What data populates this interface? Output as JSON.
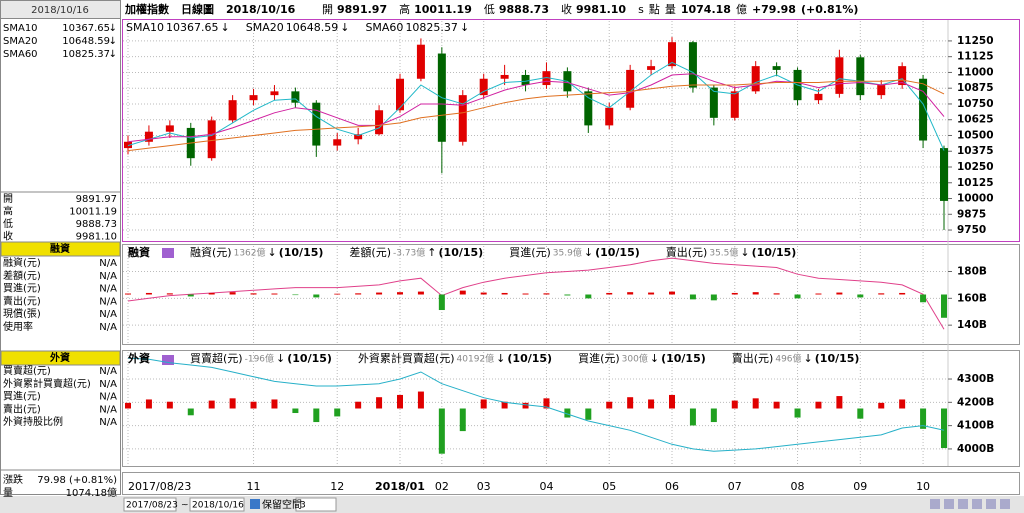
{
  "header": {
    "title": "加權指數",
    "period": "日線圖",
    "date": "2018/10/16",
    "ohlc": [
      {
        "label": "開",
        "value": "9891.97",
        "color": "#008000"
      },
      {
        "label": "高",
        "value": "10011.19",
        "color": "#e00000"
      },
      {
        "label": "低",
        "value": "9888.73",
        "color": "#008000"
      },
      {
        "label": "收",
        "value": "9981.10",
        "color": "#e00000"
      }
    ],
    "unit_s": "s",
    "unit": "點",
    "volume_label": "量",
    "volume": "1074.18",
    "volume_unit": "億",
    "change": "+79.98",
    "change_pct": "(+0.81%)"
  },
  "sidebar": {
    "margin_title": "融資",
    "margin_rows": [
      {
        "label": "融資(元)",
        "value": "N/A",
        "color": "#e0408a"
      },
      {
        "label": "差額(元)",
        "value": "N/A",
        "color": "#26a0c8"
      },
      {
        "label": "買進(元)",
        "value": "N/A",
        "color": "#f08a30"
      },
      {
        "label": "賣出(元)",
        "value": "N/A",
        "color": "#2060c0"
      },
      {
        "label": "現償(張)",
        "value": "N/A",
        "color": "#20a020"
      },
      {
        "label": "使用率",
        "value": "N/A",
        "color": "#8040c0"
      }
    ],
    "foreign_title": "外資",
    "foreign_rows": [
      {
        "label": "買賣超(元)",
        "value": "N/A",
        "color": "#e0408a"
      },
      {
        "label": "外資累計買賣超(元)",
        "value": "N/A",
        "color": "#26a0c8"
      },
      {
        "label": "買進(元)",
        "value": "N/A",
        "color": "#f08a30"
      },
      {
        "label": "賣出(元)",
        "value": "N/A",
        "color": "#2060c0"
      },
      {
        "label": "外資持股比例",
        "value": "N/A",
        "color": "#20a020"
      }
    ],
    "change_label": "漲跌",
    "change": "79.98 (+0.81%)",
    "volume_label": "量",
    "volume": "1074.18億"
  },
  "toolbar": {
    "start": "2017/08/23",
    "sep": "~",
    "end": "2018/10/16",
    "space_label": "保留空間",
    "space_value": "3"
  },
  "chart_data": [
    {
      "type": "candlestick",
      "up_color": "#e00000",
      "down_color": "#006400",
      "categories": [
        "2017/08/23",
        null,
        null,
        null,
        null,
        null,
        "11",
        null,
        null,
        null,
        "12",
        null,
        null,
        "2018/01",
        null,
        "02",
        null,
        "03",
        null,
        null,
        "04",
        null,
        null,
        "05",
        null,
        null,
        "06",
        null,
        null,
        "07",
        null,
        null,
        "08",
        null,
        null,
        "09",
        null,
        null,
        "10",
        null
      ],
      "candles": [
        [
          10400,
          10500,
          10350,
          10450
        ],
        [
          10450,
          10580,
          10420,
          10530
        ],
        [
          10530,
          10620,
          10480,
          10580
        ],
        [
          10560,
          10600,
          10260,
          10320
        ],
        [
          10320,
          10650,
          10300,
          10620
        ],
        [
          10620,
          10820,
          10600,
          10780
        ],
        [
          10780,
          10870,
          10740,
          10820
        ],
        [
          10820,
          10900,
          10780,
          10850
        ],
        [
          10850,
          10880,
          10720,
          10760
        ],
        [
          10760,
          10780,
          10330,
          10420
        ],
        [
          10420,
          10520,
          10380,
          10470
        ],
        [
          10470,
          10560,
          10430,
          10510
        ],
        [
          10510,
          10740,
          10500,
          10700
        ],
        [
          10700,
          10990,
          10680,
          10950
        ],
        [
          10950,
          11270,
          10930,
          11220
        ],
        [
          11150,
          11200,
          10200,
          10450
        ],
        [
          10450,
          10860,
          10420,
          10820
        ],
        [
          10820,
          10990,
          10790,
          10950
        ],
        [
          10950,
          11060,
          10900,
          10980
        ],
        [
          10980,
          11020,
          10850,
          10900
        ],
        [
          10900,
          11080,
          10870,
          11010
        ],
        [
          11010,
          11040,
          10800,
          10850
        ],
        [
          10850,
          10880,
          10520,
          10580
        ],
        [
          10580,
          10760,
          10550,
          10720
        ],
        [
          10720,
          11060,
          10700,
          11020
        ],
        [
          11020,
          11100,
          10980,
          11050
        ],
        [
          11050,
          11280,
          11030,
          11240
        ],
        [
          11240,
          11250,
          10840,
          10880
        ],
        [
          10880,
          10900,
          10580,
          10640
        ],
        [
          10640,
          10890,
          10620,
          10850
        ],
        [
          10850,
          11090,
          10830,
          11050
        ],
        [
          11050,
          11080,
          10970,
          11020
        ],
        [
          11020,
          11040,
          10740,
          10780
        ],
        [
          10780,
          10870,
          10750,
          10830
        ],
        [
          10830,
          11180,
          10800,
          11120
        ],
        [
          11120,
          11140,
          10780,
          10820
        ],
        [
          10820,
          10940,
          10790,
          10900
        ],
        [
          10900,
          11080,
          10870,
          11050
        ],
        [
          10950,
          10980,
          10400,
          10460
        ],
        [
          10400,
          10420,
          9750,
          9981.1
        ]
      ],
      "series": [
        {
          "name": "SMA10",
          "color": "#20b8c8",
          "value_label": "10367.65",
          "trend": "↓",
          "trend_color": "#008000",
          "values": [
            10420,
            10470,
            10520,
            10480,
            10500,
            10600,
            10700,
            10780,
            10790,
            10650,
            10550,
            10500,
            10560,
            10720,
            10900,
            10800,
            10750,
            10850,
            10920,
            10930,
            10960,
            10930,
            10800,
            10720,
            10850,
            10980,
            11080,
            11000,
            10850,
            10830,
            10920,
            10980,
            10900,
            10850,
            10950,
            10930,
            10900,
            10950,
            10750,
            10380
          ]
        },
        {
          "name": "SMA20",
          "color": "#d020a0",
          "value_label": "10648.59",
          "trend": "↓",
          "trend_color": "#008000",
          "values": [
            10450,
            10470,
            10490,
            10490,
            10510,
            10560,
            10620,
            10680,
            10720,
            10700,
            10640,
            10580,
            10580,
            10650,
            10750,
            10750,
            10740,
            10800,
            10860,
            10900,
            10930,
            10920,
            10870,
            10820,
            10840,
            10900,
            10980,
            10990,
            10930,
            10880,
            10900,
            10930,
            10920,
            10880,
            10910,
            10920,
            10900,
            10920,
            10850,
            10650
          ]
        },
        {
          "name": "SMA60",
          "color": "#e07020",
          "value_label": "10825.37",
          "trend": "↓",
          "trend_color": "#008000",
          "values": [
            10380,
            10400,
            10420,
            10440,
            10460,
            10480,
            10500,
            10520,
            10540,
            10550,
            10560,
            10570,
            10580,
            10600,
            10640,
            10660,
            10680,
            10720,
            10760,
            10790,
            10810,
            10820,
            10830,
            10840,
            10850,
            10870,
            10890,
            10900,
            10900,
            10900,
            10910,
            10920,
            10920,
            10920,
            10930,
            10930,
            10930,
            10940,
            10910,
            10830
          ]
        }
      ],
      "ylim": [
        9671,
        11408
      ],
      "yticks": [
        9750,
        9875,
        10000,
        10125,
        10250,
        10375,
        10500,
        10625,
        10750,
        10875,
        11000,
        11125,
        11250
      ],
      "grid": true
    },
    {
      "type": "line-bar",
      "title": "融資",
      "up_color": "#e00000",
      "down_color": "#20a020",
      "series": [
        {
          "name": "融資(元)",
          "color": "#e0408a",
          "value_label": "1362億",
          "trend": "↓",
          "trend_color": "#008000",
          "date": "(10/15)",
          "values": [
            158,
            160,
            162,
            163,
            164,
            165,
            166,
            167,
            168,
            168,
            168,
            169,
            170,
            173,
            175,
            162,
            168,
            172,
            175,
            177,
            179,
            180,
            181,
            183,
            185,
            188,
            190,
            188,
            186,
            185,
            184,
            183,
            178,
            175,
            174,
            173,
            172,
            170,
            163,
            137
          ]
        },
        {
          "name": "差額(元)",
          "color": "#26a0c8",
          "value_label": "-3.73億",
          "trend": "↑",
          "trend_color": "#e00000",
          "date": "(10/15)",
          "axis": "y2",
          "values": [
            5,
            8,
            6,
            -10,
            8,
            12,
            6,
            5,
            -3,
            -15,
            4,
            6,
            10,
            12,
            15,
            -80,
            20,
            10,
            8,
            5,
            6,
            -5,
            -20,
            8,
            12,
            10,
            15,
            -25,
            -30,
            8,
            12,
            6,
            -20,
            5,
            10,
            -15,
            6,
            8,
            -40,
            -120
          ]
        },
        {
          "name": "買進(元)",
          "color": "#f08a30",
          "value_label": "35.9億",
          "trend": "↓",
          "trend_color": "#008000",
          "date": "(10/15)"
        },
        {
          "name": "賣出(元)",
          "color": "#2060c0",
          "value_label": "35.5億",
          "trend": "↓",
          "trend_color": "#008000",
          "date": "(10/15)"
        }
      ],
      "ylim": [
        126.7,
        199
      ],
      "yticks": [
        {
          "value": 140,
          "label": "140B"
        },
        {
          "value": 160,
          "label": "160B"
        },
        {
          "value": 180,
          "label": "180B"
        }
      ],
      "y2lim": [
        -250,
        250
      ],
      "grid": true
    },
    {
      "type": "line-bar",
      "title": "外資",
      "up_color": "#e00000",
      "down_color": "#20a020",
      "series": [
        {
          "name": "買賣超(元)",
          "color": "#e0408a",
          "value_label": "-196億",
          "trend": "↓",
          "trend_color": "#008000",
          "date": "(10/15)",
          "axis": "y2",
          "values": [
            50,
            80,
            60,
            -60,
            70,
            90,
            60,
            80,
            -40,
            -120,
            -70,
            60,
            100,
            120,
            150,
            -400,
            -200,
            80,
            60,
            50,
            90,
            -80,
            -100,
            60,
            100,
            80,
            120,
            -150,
            -120,
            70,
            90,
            60,
            -80,
            60,
            110,
            -90,
            50,
            80,
            -180,
            -350
          ]
        },
        {
          "name": "外資累計買賣超(元)",
          "color": "#26b0c8",
          "value_label": "40192億",
          "trend": "↓",
          "trend_color": "#008000",
          "date": "(10/15)",
          "values": [
            4390,
            4385,
            4370,
            4360,
            4350,
            4330,
            4310,
            4290,
            4280,
            4270,
            4270,
            4275,
            4280,
            4300,
            4330,
            4280,
            4250,
            4220,
            4200,
            4190,
            4180,
            4150,
            4120,
            4100,
            4080,
            4050,
            4020,
            4000,
            3990,
            3995,
            4000,
            4010,
            4020,
            4030,
            4040,
            4050,
            4060,
            4090,
            4100,
            4080
          ]
        },
        {
          "name": "買進(元)",
          "color": "#f08a30",
          "value_label": "300億",
          "trend": "↓",
          "trend_color": "#008000",
          "date": "(10/15)"
        },
        {
          "name": "賣出(元)",
          "color": "#2060c0",
          "value_label": "496億",
          "trend": "↓",
          "trend_color": "#008000",
          "date": "(10/15)"
        }
      ],
      "ylim": [
        3931,
        4416
      ],
      "yticks": [
        {
          "value": 4000,
          "label": "4000B"
        },
        {
          "value": 4100,
          "label": "4100B"
        },
        {
          "value": 4200,
          "label": "4200B"
        },
        {
          "value": 4300,
          "label": "4300B"
        }
      ],
      "y2lim": [
        -500,
        500
      ],
      "grid": true
    }
  ]
}
